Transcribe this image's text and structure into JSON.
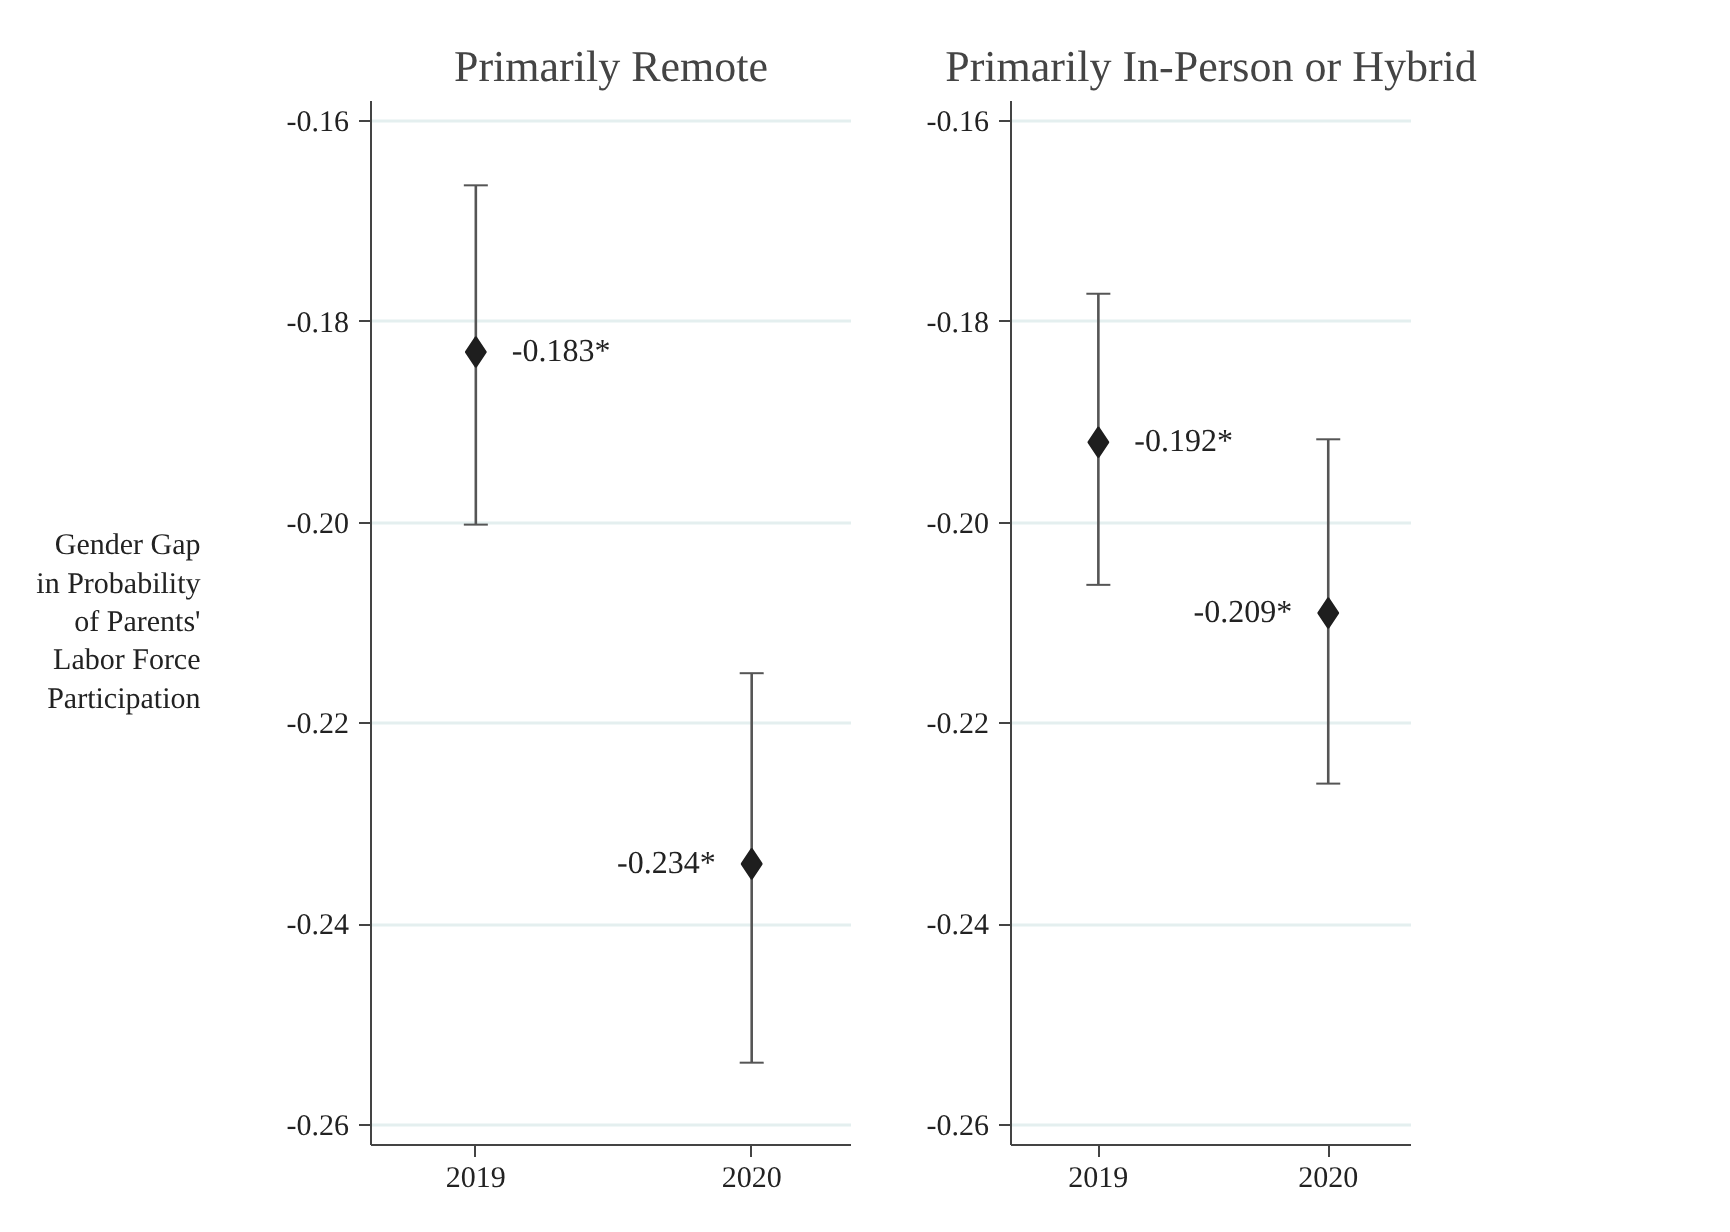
{
  "chart_data": [
    {
      "type": "scatter",
      "title": "Primarily Remote",
      "ylabel": "Gender Gap\nin Probability\nof Parents'\nLabor Force\nParticipation",
      "categories": [
        "2019",
        "2020"
      ],
      "values": [
        -0.183,
        -0.234
      ],
      "value_labels": [
        "-0.183*",
        "-0.234*"
      ],
      "errors": [
        [
          -0.2002,
          -0.1664
        ],
        [
          -0.2538,
          -0.215
        ]
      ],
      "color": "#1e1e1e",
      "marker": "diamond",
      "ylim": [
        -0.262,
        -0.158
      ],
      "yticks": [
        {
          "value": -0.16,
          "label": "-0.16"
        },
        {
          "value": -0.18,
          "label": "-0.18"
        },
        {
          "value": -0.2,
          "label": "-0.20"
        },
        {
          "value": -0.22,
          "label": "-0.22"
        },
        {
          "value": -0.24,
          "label": "-0.24"
        },
        {
          "value": -0.26,
          "label": "-0.26"
        }
      ],
      "grid": "y"
    },
    {
      "type": "scatter",
      "title": "Primarily In-Person or Hybrid",
      "categories": [
        "2019",
        "2020"
      ],
      "values": [
        -0.192,
        -0.209
      ],
      "value_labels": [
        "-0.192*",
        "-0.209*"
      ],
      "errors": [
        [
          -0.2062,
          -0.1772
        ],
        [
          -0.226,
          -0.1917
        ]
      ],
      "color": "#1e1e1e",
      "marker": "diamond",
      "ylim": [
        -0.262,
        -0.158
      ],
      "yticks": [
        {
          "value": -0.16,
          "label": "-0.16"
        },
        {
          "value": -0.18,
          "label": "-0.18"
        },
        {
          "value": -0.2,
          "label": "-0.20"
        },
        {
          "value": -0.22,
          "label": "-0.22"
        },
        {
          "value": -0.24,
          "label": "-0.24"
        },
        {
          "value": -0.26,
          "label": "-0.26"
        }
      ],
      "grid": "y"
    }
  ]
}
